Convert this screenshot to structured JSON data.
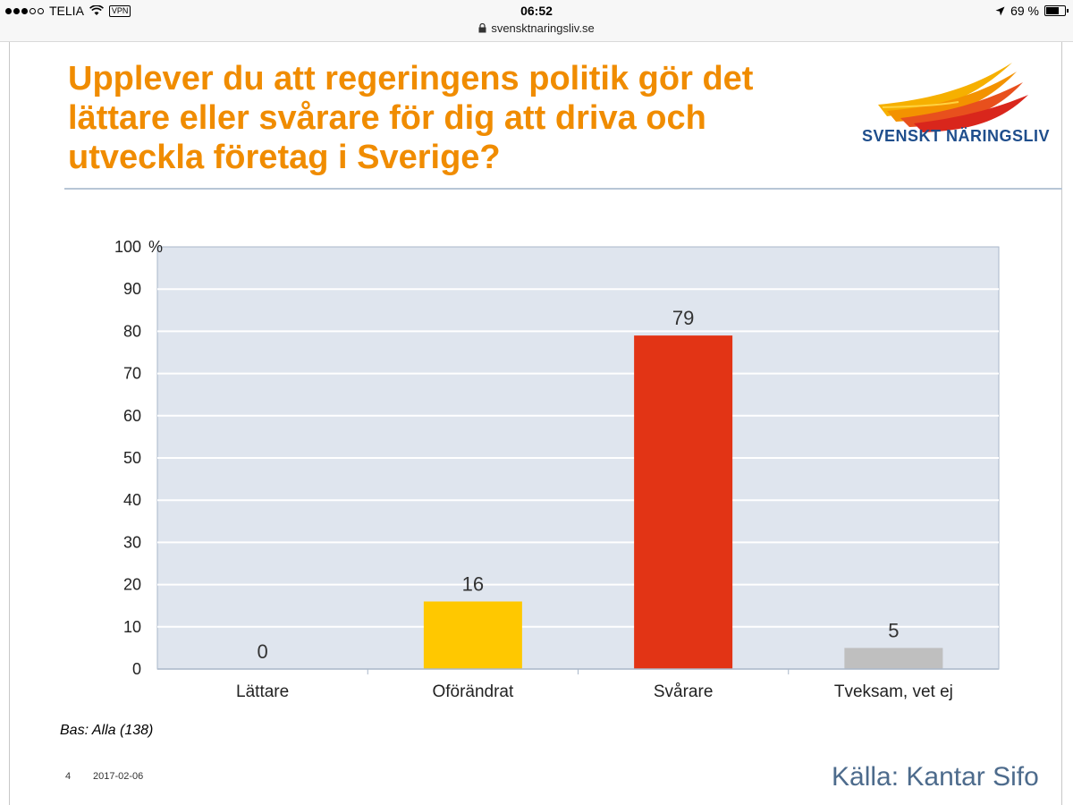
{
  "statusbar": {
    "carrier": "TELIA",
    "vpn": "VPN",
    "time": "06:52",
    "battery": "69 %",
    "battery_level": 0.69,
    "url": "svensktnaringsliv.se"
  },
  "slide": {
    "title": "Upplever du att regeringens politik gör det lättare eller svårare för dig att driva och utveckla företag i Sverige?",
    "logo_text": "SVENSKT NÄRINGSLIV",
    "base_note": "Bas: Alla (138)",
    "page_number": "4",
    "date": "2017-02-06",
    "source": "Källa: Kantar Sifo"
  },
  "colors": {
    "title": "#f08c00",
    "plot_bg": "#dfe5ee",
    "gridline": "#ffffff",
    "axis": "#a9b7c9"
  },
  "chart_data": {
    "type": "bar",
    "categories": [
      "Lättare",
      "Oförändrat",
      "Svårare",
      "Tveksam, vet ej"
    ],
    "values": [
      0,
      16,
      79,
      5
    ],
    "bar_colors": [
      "#dfe5ee",
      "#ffc800",
      "#e23415",
      "#bfbfbf"
    ],
    "title": "",
    "xlabel": "",
    "ylabel": "%",
    "ylim": [
      0,
      100
    ],
    "yticks": [
      0,
      10,
      20,
      30,
      40,
      50,
      60,
      70,
      80,
      90,
      100
    ],
    "grid": true
  }
}
